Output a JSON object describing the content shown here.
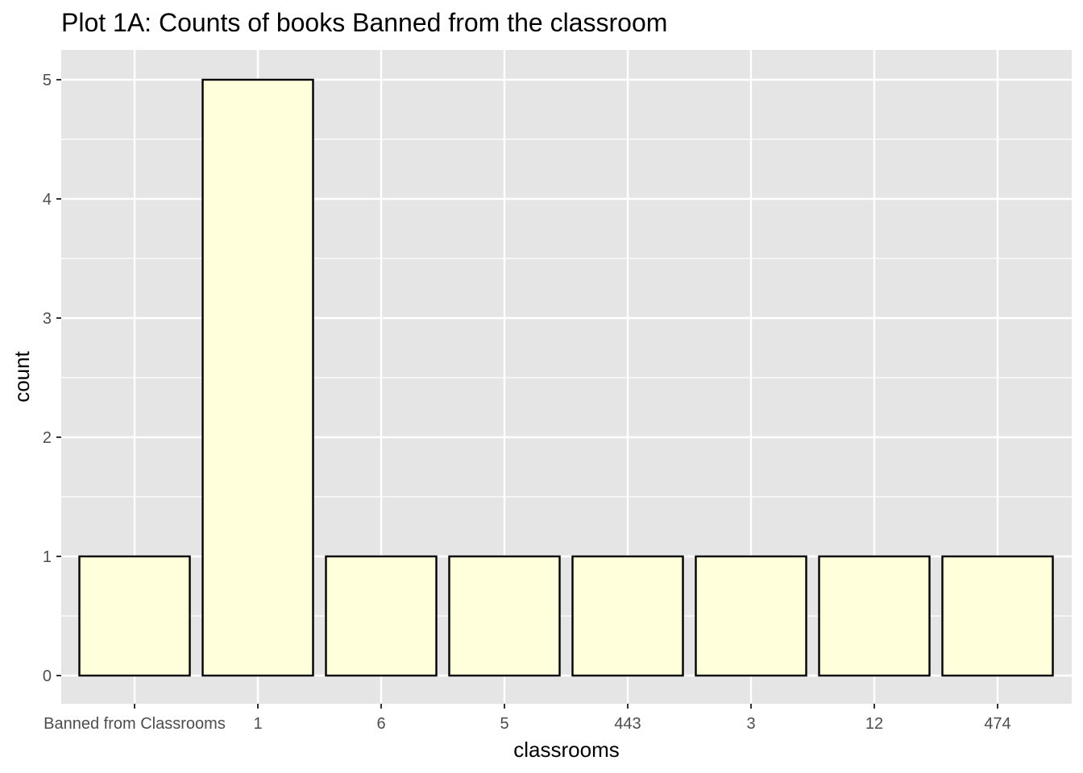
{
  "chart_data": {
    "type": "bar",
    "title": "Plot 1A: Counts of books Banned from the classroom",
    "xlabel": "classrooms",
    "ylabel": "count",
    "categories": [
      "Banned from Classrooms",
      "1",
      "6",
      "5",
      "443",
      "3",
      "12",
      "474"
    ],
    "values": [
      1,
      5,
      1,
      1,
      1,
      1,
      1,
      1
    ],
    "ylim": [
      0,
      5.25
    ],
    "yticks": [
      0,
      1,
      2,
      3,
      4,
      5
    ],
    "grid": true,
    "legend": "none",
    "colors": {
      "panel_background": "#e5e5e5",
      "grid": "#ffffff",
      "bar_fill": "#ffffdc",
      "bar_outline": "#000000",
      "tick_text": "#4d4d4d"
    }
  }
}
